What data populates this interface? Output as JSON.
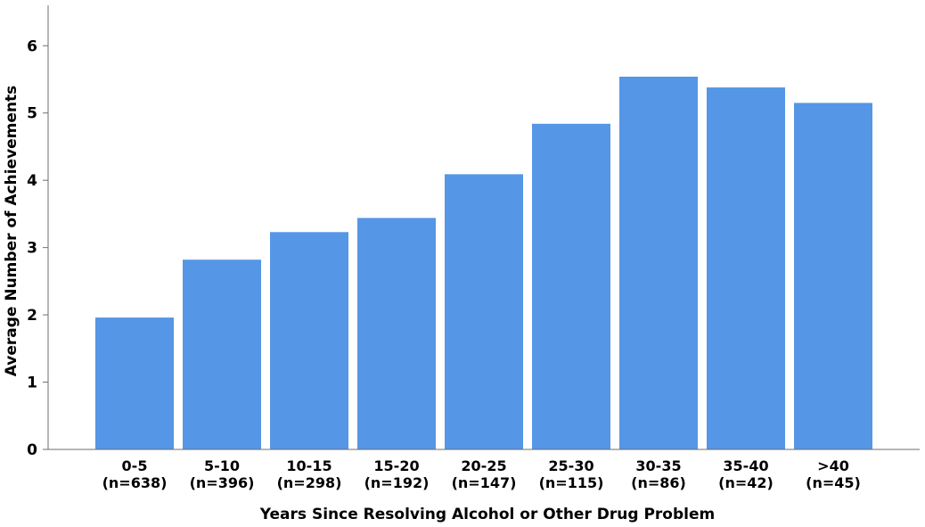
{
  "chart_data": {
    "type": "bar",
    "categories": [
      "0-5",
      "5-10",
      "10-15",
      "15-20",
      "20-25",
      "25-30",
      "30-35",
      "35-40",
      ">40"
    ],
    "category_counts": [
      "(n=638)",
      "(n=396)",
      "(n=298)",
      "(n=192)",
      "(n=147)",
      "(n=115)",
      "(n=86)",
      "(n=42)",
      "(n=45)"
    ],
    "values": [
      1.96,
      2.82,
      3.23,
      3.44,
      4.09,
      4.84,
      5.54,
      5.38,
      5.15
    ],
    "xlabel": "Years Since Resolving Alcohol or Other Drug Problem",
    "ylabel": "Average Number of Achievements",
    "ylim": [
      0,
      6.6
    ],
    "yticks": [
      "0",
      "1",
      "2",
      "3",
      "4",
      "5",
      "6"
    ],
    "grid": false,
    "bar_color": "#5596e6",
    "axis_color": "#6e6e6e"
  }
}
